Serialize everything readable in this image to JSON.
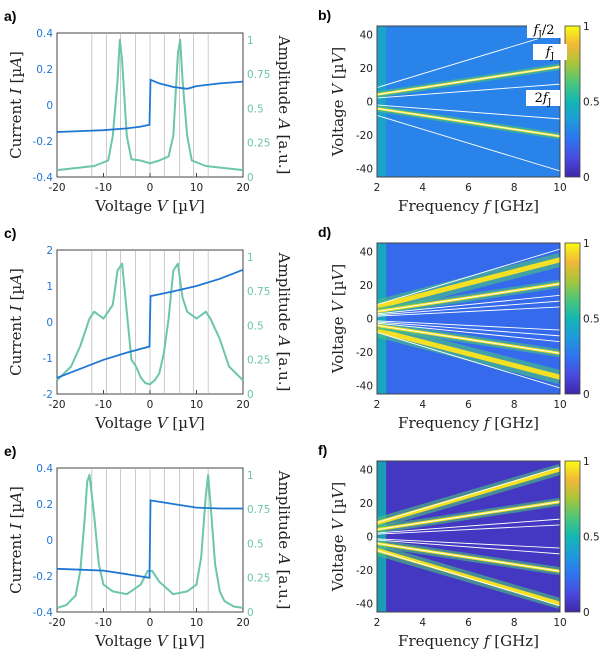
{
  "colors": {
    "current": "#1f77d4",
    "amplitude": "#6cc5ad",
    "grid": "#aaaaaa",
    "cmap": [
      "#3e26a8",
      "#4a4be0",
      "#2f74f0",
      "#1f99db",
      "#13b7b3",
      "#4cc67a",
      "#a7c63a",
      "#f1b837",
      "#f9fb15"
    ]
  },
  "chart_data": [
    {
      "type": "line",
      "panel_label": "a)",
      "xlabel": "Voltage V [µV]",
      "ylabel_left": "Current I [µA]",
      "ylabel_right": "Amplitude A [a.u.]",
      "xlim": [
        -20,
        20
      ],
      "ylim_left": [
        -0.4,
        0.4
      ],
      "ylim_right": [
        0,
        1.05
      ],
      "xticks": [
        "-20",
        "-10",
        "0",
        "10",
        "20"
      ],
      "yticks_left": [
        "-0.4",
        "-0.2",
        "0",
        "0.2",
        "0.4"
      ],
      "yticks_right": [
        "0",
        "0.25",
        "0.5",
        "0.75",
        "1"
      ],
      "grid_x": [
        -12.5,
        -9.4,
        -6.3,
        -3.1,
        0,
        3.1,
        6.3,
        9.4,
        12.5
      ],
      "series": [
        {
          "name": "Current I",
          "axis": "left",
          "x": [
            -20,
            -15,
            -10,
            -5,
            -2,
            -0.1,
            0.1,
            2,
            5,
            8,
            10,
            15,
            20
          ],
          "values": [
            -0.15,
            -0.145,
            -0.14,
            -0.13,
            -0.12,
            -0.11,
            0.14,
            0.12,
            0.1,
            0.09,
            0.105,
            0.12,
            0.13
          ]
        },
        {
          "name": "Amplitude A",
          "axis": "right",
          "x": [
            -20,
            -12,
            -9,
            -8,
            -7,
            -6.5,
            -6,
            -5,
            -4,
            -2,
            0,
            2,
            4,
            5,
            6,
            6.5,
            7,
            8,
            9,
            12,
            20
          ],
          "values": [
            0.05,
            0.08,
            0.12,
            0.3,
            0.7,
            1.0,
            0.85,
            0.3,
            0.13,
            0.12,
            0.1,
            0.12,
            0.15,
            0.3,
            0.9,
            1.0,
            0.7,
            0.3,
            0.12,
            0.08,
            0.05
          ]
        }
      ]
    },
    {
      "type": "heatmap",
      "panel_label": "b)",
      "xlabel": "Frequency f [GHz]",
      "ylabel": "Voltage V [µV]",
      "xlim": [
        2,
        10
      ],
      "ylim": [
        -45,
        45
      ],
      "xticks": [
        "2",
        "4",
        "6",
        "8",
        "10"
      ],
      "yticks": [
        "-40",
        "-20",
        "0",
        "20",
        "40"
      ],
      "colorbar_ticks": [
        "0",
        "0.5",
        "1"
      ],
      "lines_slope": [
        2.07,
        4.14,
        1.035
      ],
      "annotations": [
        "fJ/2",
        "fJ",
        "2fJ"
      ],
      "ridges": [
        {
          "slope": 2.07,
          "width": 1.5
        }
      ]
    },
    {
      "type": "line",
      "panel_label": "c)",
      "xlabel": "Voltage V [µV]",
      "ylabel_left": "Current I [µA]",
      "ylabel_right": "Amplitude A [a.u.]",
      "xlim": [
        -20,
        20
      ],
      "ylim_left": [
        -2,
        2
      ],
      "ylim_right": [
        0,
        1.05
      ],
      "xticks": [
        "-20",
        "-10",
        "0",
        "10",
        "20"
      ],
      "yticks_left": [
        "-2",
        "-1",
        "0",
        "1",
        "2"
      ],
      "yticks_right": [
        "0",
        "0.25",
        "0.5",
        "0.75",
        "1"
      ],
      "grid_x": [
        -12.5,
        -9.4,
        -6.3,
        -3.1,
        0,
        3.1,
        6.3,
        9.4,
        12.5
      ],
      "series": [
        {
          "name": "Current I",
          "axis": "left",
          "x": [
            -20,
            -15,
            -10,
            -5,
            -0.1,
            0.1,
            5,
            10,
            15,
            20
          ],
          "values": [
            -1.55,
            -1.3,
            -1.05,
            -0.85,
            -0.68,
            0.72,
            0.85,
            1.0,
            1.2,
            1.45
          ]
        },
        {
          "name": "Amplitude A",
          "axis": "right",
          "x": [
            -20,
            -17,
            -15,
            -13,
            -12,
            -10,
            -8,
            -7,
            -6,
            -5,
            -4,
            -3,
            -2,
            -1,
            0,
            1,
            2,
            3,
            4,
            5,
            6,
            7,
            8,
            10,
            12,
            13,
            15,
            17,
            20
          ],
          "values": [
            0.1,
            0.2,
            0.35,
            0.55,
            0.6,
            0.55,
            0.65,
            0.9,
            0.95,
            0.6,
            0.25,
            0.2,
            0.12,
            0.08,
            0.07,
            0.1,
            0.15,
            0.3,
            0.55,
            0.9,
            0.95,
            0.7,
            0.6,
            0.55,
            0.6,
            0.55,
            0.4,
            0.2,
            0.1
          ]
        }
      ]
    },
    {
      "type": "heatmap",
      "panel_label": "d)",
      "xlabel": "Frequency f [GHz]",
      "ylabel": "Voltage V [µV]",
      "xlim": [
        2,
        10
      ],
      "ylim": [
        -45,
        45
      ],
      "xticks": [
        "2",
        "4",
        "6",
        "8",
        "10"
      ],
      "yticks": [
        "-40",
        "-20",
        "0",
        "20",
        "40"
      ],
      "colorbar_ticks": [
        "0",
        "0.5",
        "1"
      ],
      "lines_slope": [
        4.14,
        2.07,
        1.38,
        1.035,
        0.69
      ],
      "annotations": [],
      "ridges": [
        {
          "slope": 3.5,
          "width": 4
        },
        {
          "slope": 2.07,
          "width": 2
        }
      ]
    },
    {
      "type": "line",
      "panel_label": "e)",
      "xlabel": "Voltage V [µV]",
      "ylabel_left": "Current I [µA]",
      "ylabel_right": "Amplitude A [a.u.]",
      "xlim": [
        -20,
        20
      ],
      "ylim_left": [
        -0.4,
        0.4
      ],
      "ylim_right": [
        0,
        1.05
      ],
      "xticks": [
        "-20",
        "-10",
        "0",
        "10",
        "20"
      ],
      "yticks_left": [
        "-0.4",
        "-0.2",
        "0",
        "0.2",
        "0.4"
      ],
      "yticks_right": [
        "0",
        "0.25",
        "0.5",
        "0.75",
        "1"
      ],
      "grid_x": [
        -12.5,
        -9.4,
        -6.3,
        -3.1,
        0,
        3.1,
        6.3,
        9.4,
        12.5
      ],
      "series": [
        {
          "name": "Current I",
          "axis": "left",
          "x": [
            -20,
            -15,
            -10,
            -5,
            -0.1,
            0.1,
            5,
            10,
            15,
            20
          ],
          "values": [
            -0.16,
            -0.165,
            -0.17,
            -0.19,
            -0.21,
            0.22,
            0.2,
            0.18,
            0.175,
            0.175
          ]
        },
        {
          "name": "Amplitude A",
          "axis": "right",
          "x": [
            -20,
            -18,
            -16,
            -15,
            -14,
            -13.5,
            -13,
            -12,
            -11,
            -10,
            -8,
            -5,
            -2,
            -0.5,
            0.5,
            2,
            5,
            8,
            10,
            11,
            12,
            12.5,
            13,
            14,
            15,
            16,
            18,
            20
          ],
          "values": [
            0.03,
            0.05,
            0.12,
            0.3,
            0.7,
            0.95,
            1.0,
            0.7,
            0.35,
            0.2,
            0.15,
            0.13,
            0.2,
            0.3,
            0.3,
            0.22,
            0.13,
            0.15,
            0.2,
            0.4,
            0.85,
            1.0,
            0.8,
            0.35,
            0.15,
            0.08,
            0.04,
            0.03
          ]
        }
      ]
    },
    {
      "type": "heatmap",
      "panel_label": "f)",
      "xlabel": "Frequency f [GHz]",
      "ylabel": "Voltage V [µV]",
      "xlim": [
        2,
        10
      ],
      "ylim": [
        -45,
        45
      ],
      "xticks": [
        "2",
        "4",
        "6",
        "8",
        "10"
      ],
      "yticks": [
        "-40",
        "-20",
        "0",
        "20",
        "40"
      ],
      "colorbar_ticks": [
        "0",
        "0.5",
        "1"
      ],
      "lines_slope": [
        4.14,
        2.07,
        1.035,
        0.69
      ],
      "annotations": [],
      "ridges": [
        {
          "slope": 4.0,
          "width": 3
        },
        {
          "slope": 2.07,
          "width": 2
        }
      ]
    }
  ]
}
